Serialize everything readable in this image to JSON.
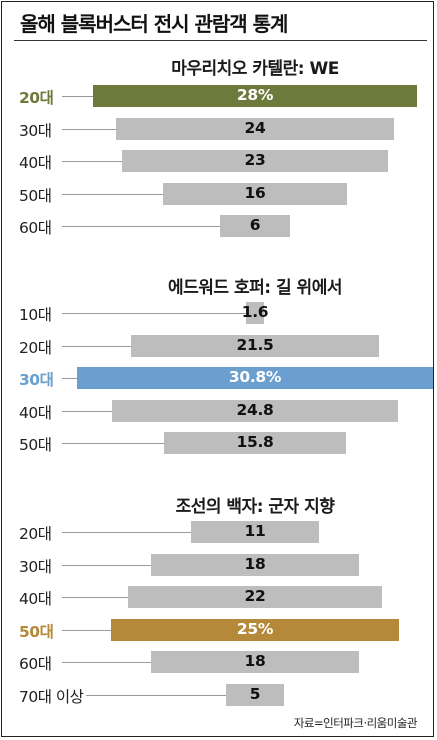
{
  "title": "올해 블록버스터 전시 관람객 통계",
  "source": "자료=인터파크·리움미술관",
  "chart_data": [
    {
      "type": "bar",
      "title": "마우리치오 카텔란: WE",
      "categories": [
        "20대",
        "30대",
        "40대",
        "50대",
        "60대"
      ],
      "values": [
        28,
        24,
        23,
        16,
        6
      ],
      "value_labels": [
        "28%",
        "24",
        "23",
        "16",
        "6"
      ],
      "highlight_index": 0,
      "highlight_color": "#6d7a3c",
      "bar_color": "#bdbdbd"
    },
    {
      "type": "bar",
      "title": "에드워드 호퍼: 길 위에서",
      "categories": [
        "10대",
        "20대",
        "30대",
        "40대",
        "50대"
      ],
      "values": [
        1.6,
        21.5,
        30.8,
        24.8,
        15.8
      ],
      "value_labels": [
        "1.6",
        "21.5",
        "30.8%",
        "24.8",
        "15.8"
      ],
      "highlight_index": 2,
      "highlight_color": "#6b9fcf",
      "bar_color": "#bdbdbd"
    },
    {
      "type": "bar",
      "title": "조선의 백자: 군자 지향",
      "categories": [
        "20대",
        "30대",
        "40대",
        "50대",
        "60대",
        "70대 이상"
      ],
      "values": [
        11,
        18,
        22,
        25,
        18,
        5
      ],
      "value_labels": [
        "11",
        "18",
        "22",
        "25%",
        "18",
        "5"
      ],
      "highlight_index": 3,
      "highlight_color": "#b48a3a",
      "bar_color": "#bdbdbd"
    }
  ]
}
